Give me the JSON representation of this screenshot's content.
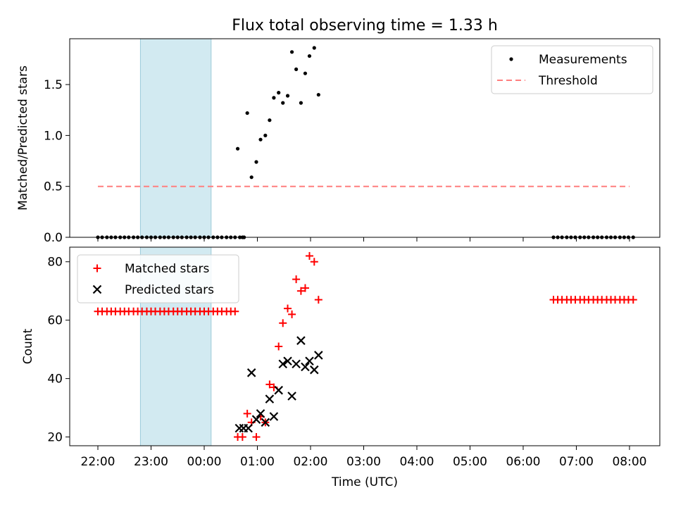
{
  "chart_data": [
    {
      "type": "scatter",
      "title": "Flux total observing time = 1.33 h",
      "ylabel": "Matched/Predicted stars",
      "xlim": [
        -0.53,
        10.57
      ],
      "ylim": [
        0,
        1.95
      ],
      "yticks": [
        0.0,
        0.5,
        1.0,
        1.5
      ],
      "ytick_labels": [
        "0.0",
        "0.5",
        "1.0",
        "1.5"
      ],
      "shaded_region": {
        "x": [
          0.8,
          2.13
        ],
        "color": "#add8e6"
      },
      "legend": "upper-right",
      "series": [
        {
          "name": "Measurements",
          "marker": "dot",
          "color": "#000000",
          "x": [
            0.0,
            0.08,
            0.17,
            0.25,
            0.33,
            0.42,
            0.5,
            0.58,
            0.67,
            0.75,
            0.83,
            0.92,
            1.0,
            1.08,
            1.17,
            1.25,
            1.33,
            1.42,
            1.5,
            1.58,
            1.67,
            1.75,
            1.83,
            1.92,
            2.0,
            2.08,
            2.17,
            2.25,
            2.33,
            2.42,
            2.5,
            2.58,
            2.67,
            2.75,
            2.63,
            2.72,
            2.81,
            2.89,
            2.98,
            3.06,
            3.15,
            3.23,
            3.31,
            3.4,
            3.48,
            3.57,
            3.65,
            3.73,
            3.82,
            3.9,
            3.98,
            4.07,
            4.15,
            8.57,
            8.65,
            8.73,
            8.82,
            8.9,
            8.98,
            9.07,
            9.15,
            9.23,
            9.32,
            9.4,
            9.48,
            9.57,
            9.65,
            9.73,
            9.82,
            9.9,
            9.98,
            10.07
          ],
          "y": [
            0,
            0,
            0,
            0,
            0,
            0,
            0,
            0,
            0,
            0,
            0,
            0,
            0,
            0,
            0,
            0,
            0,
            0,
            0,
            0,
            0,
            0,
            0,
            0,
            0,
            0,
            0,
            0,
            0,
            0,
            0,
            0,
            0,
            0,
            0.87,
            0,
            1.22,
            0.59,
            0.74,
            0.96,
            1.0,
            1.15,
            1.37,
            1.42,
            1.32,
            1.39,
            1.82,
            1.65,
            1.32,
            1.61,
            1.78,
            1.86,
            1.4,
            0,
            0,
            0,
            0,
            0,
            0,
            0,
            0,
            0,
            0,
            0,
            0,
            0,
            0,
            0,
            0,
            0,
            0,
            0
          ]
        },
        {
          "name": "Threshold",
          "style": "dashed",
          "color": "#ff7f7f",
          "x": [
            0,
            10.0
          ],
          "y": [
            0.5,
            0.5
          ]
        }
      ]
    },
    {
      "type": "scatter",
      "ylabel": "Count",
      "xlabel": "Time (UTC)",
      "xlim": [
        -0.53,
        10.57
      ],
      "ylim": [
        17,
        85
      ],
      "yticks": [
        20,
        40,
        60,
        80
      ],
      "xticks": [
        0,
        1,
        2,
        3,
        4,
        5,
        6,
        7,
        8,
        9,
        10
      ],
      "xtick_labels": [
        "22:00",
        "23:00",
        "00:00",
        "01:00",
        "02:00",
        "03:00",
        "04:00",
        "05:00",
        "06:00",
        "07:00",
        "08:00"
      ],
      "shaded_region": {
        "x": [
          0.8,
          2.13
        ],
        "color": "#add8e6"
      },
      "legend": "upper-left",
      "series": [
        {
          "name": "Matched stars",
          "marker": "plus",
          "color": "#ff0000",
          "x": [
            0.0,
            0.08,
            0.17,
            0.25,
            0.33,
            0.42,
            0.5,
            0.58,
            0.67,
            0.75,
            0.83,
            0.92,
            1.0,
            1.08,
            1.17,
            1.25,
            1.33,
            1.42,
            1.5,
            1.58,
            1.67,
            1.75,
            1.83,
            1.92,
            2.0,
            2.08,
            2.17,
            2.25,
            2.33,
            2.42,
            2.5,
            2.58,
            2.63,
            2.72,
            2.81,
            2.89,
            2.98,
            3.06,
            3.15,
            3.23,
            3.31,
            3.4,
            3.48,
            3.57,
            3.65,
            3.73,
            3.82,
            3.9,
            3.98,
            4.07,
            4.15,
            8.57,
            8.65,
            8.73,
            8.82,
            8.9,
            8.98,
            9.07,
            9.15,
            9.23,
            9.32,
            9.4,
            9.48,
            9.57,
            9.65,
            9.73,
            9.82,
            9.9,
            9.98,
            10.07
          ],
          "y": [
            63,
            63,
            63,
            63,
            63,
            63,
            63,
            63,
            63,
            63,
            63,
            63,
            63,
            63,
            63,
            63,
            63,
            63,
            63,
            63,
            63,
            63,
            63,
            63,
            63,
            63,
            63,
            63,
            63,
            63,
            63,
            63,
            20,
            20,
            28,
            25,
            20,
            27,
            25,
            38,
            37,
            51,
            59,
            64,
            62,
            74,
            70,
            71,
            82,
            80,
            67,
            67,
            67,
            67,
            67,
            67,
            67,
            67,
            67,
            67,
            67,
            67,
            67,
            67,
            67,
            67,
            67,
            67,
            67,
            67
          ]
        },
        {
          "name": "Predicted stars",
          "marker": "x",
          "color": "#000000",
          "x": [
            2.66,
            2.74,
            2.83,
            2.89,
            2.98,
            3.06,
            3.15,
            3.23,
            3.31,
            3.4,
            3.48,
            3.57,
            3.65,
            3.73,
            3.82,
            3.9,
            3.98,
            4.07,
            4.15
          ],
          "y": [
            23,
            23,
            23,
            42,
            26,
            28,
            25,
            33,
            27,
            36,
            45,
            46,
            34,
            45,
            53,
            44,
            46,
            43,
            48
          ]
        }
      ]
    }
  ]
}
